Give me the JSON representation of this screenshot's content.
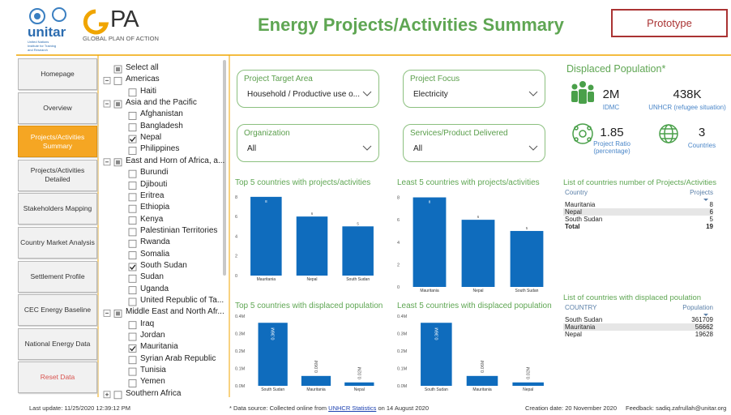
{
  "header": {
    "title": "Energy Projects/Activities Summary",
    "badge": "Prototype",
    "unitar": "unitar",
    "unitar_sub": "United Nations Institute for Training and Research",
    "gpa": "PA",
    "gpa_sub": "GLOBAL PLAN OF ACTION"
  },
  "nav": [
    {
      "label": "Homepage"
    },
    {
      "label": "Overview"
    },
    {
      "label": "Projects/Activities Summary",
      "active": true
    },
    {
      "label": "Projects/Activities Detailed"
    },
    {
      "label": "Stakeholders Mapping"
    },
    {
      "label": "Country Market Analysis"
    },
    {
      "label": "Settlement Profile"
    },
    {
      "label": "CEC Energy Baseline"
    },
    {
      "label": "National Energy Data"
    },
    {
      "label": "Reset Data",
      "color": "#d9534f"
    }
  ],
  "tree": {
    "select_all": "Select all",
    "regions": [
      {
        "name": "Americas",
        "countries": [
          {
            "name": "Haiti"
          }
        ]
      },
      {
        "name": "Asia and the Pacific",
        "countries": [
          {
            "name": "Afghanistan"
          },
          {
            "name": "Bangladesh"
          },
          {
            "name": "Nepal",
            "checked": true
          },
          {
            "name": "Philippines"
          }
        ]
      },
      {
        "name": "East and Horn of Africa, a...",
        "countries": [
          {
            "name": "Burundi"
          },
          {
            "name": "Djibouti"
          },
          {
            "name": "Eritrea"
          },
          {
            "name": "Ethiopia"
          },
          {
            "name": "Kenya"
          },
          {
            "name": "Palestinian Territories"
          },
          {
            "name": "Rwanda"
          },
          {
            "name": "Somalia"
          },
          {
            "name": "South Sudan",
            "checked": true
          },
          {
            "name": "Sudan"
          },
          {
            "name": "Uganda"
          },
          {
            "name": "United Republic of Ta..."
          }
        ]
      },
      {
        "name": "Middle East and North Afr...",
        "countries": [
          {
            "name": "Iraq"
          },
          {
            "name": "Jordan"
          },
          {
            "name": "Mauritania",
            "checked": true
          },
          {
            "name": "Syrian Arab Republic"
          },
          {
            "name": "Tunisia"
          },
          {
            "name": "Yemen"
          }
        ]
      },
      {
        "name": "Southern Africa",
        "countries": []
      }
    ]
  },
  "filters": [
    {
      "label": "Project Target Area",
      "value": "Household / Productive use o..."
    },
    {
      "label": "Project Focus",
      "value": "Electricity"
    },
    {
      "label": "Organization",
      "value": "All"
    },
    {
      "label": "Services/Product Delivered",
      "value": "All"
    }
  ],
  "chart_data": [
    {
      "type": "bar",
      "title": "Top 5 countries with projects/activities",
      "categories": [
        "Mauritania",
        "Nepal",
        "South Sudan"
      ],
      "values": [
        8,
        6,
        5
      ],
      "color": "#0f6cbd",
      "ylim": [
        0,
        8.4
      ],
      "yticks": [
        0,
        2,
        4,
        6,
        8
      ]
    },
    {
      "type": "bar",
      "title": "Least 5 countries with projects/activities",
      "categories": [
        "Mauritania",
        "Nepal",
        "South Sudan"
      ],
      "values": [
        8,
        6,
        5
      ],
      "color": "#0f6cbd",
      "ylim": [
        0,
        8.4
      ],
      "yticks": [
        0,
        2,
        4,
        6,
        8
      ]
    },
    {
      "type": "bar",
      "title": "Top 5 countries with displaced population",
      "categories": [
        "South Sudan",
        "Mauritania",
        "Nepal"
      ],
      "values": [
        361709,
        56662,
        19628
      ],
      "value_labels": [
        "0.36M",
        "0.06M",
        "0.02M"
      ],
      "color": "#0f6cbd",
      "ylim": [
        0,
        400000
      ],
      "yticks": [
        {
          "value": 0,
          "label": "0.0M"
        },
        {
          "value": 100000,
          "label": "0.1M"
        },
        {
          "value": 200000,
          "label": "0.2M"
        },
        {
          "value": 300000,
          "label": "0.3M"
        },
        {
          "value": 400000,
          "label": "0.4M"
        }
      ]
    },
    {
      "type": "bar",
      "title": "Least 5 countries with displaced population",
      "categories": [
        "South Sudan",
        "Mauritania",
        "Nepal"
      ],
      "values": [
        361709,
        56662,
        19628
      ],
      "value_labels": [
        "0.36M",
        "0.06M",
        "0.02M"
      ],
      "color": "#0f6cbd",
      "ylim": [
        0,
        400000
      ],
      "yticks": [
        {
          "value": 0,
          "label": "0.0M"
        },
        {
          "value": 100000,
          "label": "0.1M"
        },
        {
          "value": 200000,
          "label": "0.2M"
        },
        {
          "value": 300000,
          "label": "0.3M"
        },
        {
          "value": 400000,
          "label": "0.4M"
        }
      ]
    }
  ],
  "kpis": {
    "title": "Displaced Population*",
    "items": [
      {
        "value": "2M",
        "label": "IDMC"
      },
      {
        "value": "438K",
        "label": "UNHCR (refugee situation)"
      },
      {
        "value": "1.85",
        "label": "Project Ratio (percentage)"
      },
      {
        "value": "3",
        "label": "Countries"
      }
    ]
  },
  "tables": [
    {
      "title": "List of countries number of Projects/Activities",
      "columns": [
        "Country",
        "Projects"
      ],
      "rows": [
        [
          "Mauritania",
          8
        ],
        [
          "Nepal",
          6
        ],
        [
          "South Sudan",
          5
        ]
      ],
      "total": [
        "Total",
        19
      ],
      "highlight_row": 1
    },
    {
      "title": "List of countries with displaced poulation",
      "columns": [
        "COUNTRY",
        "Population"
      ],
      "rows": [
        [
          "South Sudan",
          361709
        ],
        [
          "Mauritania",
          56662
        ],
        [
          "Nepal",
          19628
        ]
      ],
      "highlight_row": 1
    }
  ],
  "footer": {
    "last_update": "Last update: 11/25/2020 12:39:12 PM",
    "source_prefix": "* Data source: Collected online from",
    "source_link": "UNHCR Statistics",
    "source_suffix": "on 14 August 2020",
    "creation": "Creation date: 20 November 2020",
    "feedback": "Feedback: sadiq.zafrullah@unitar.org"
  }
}
